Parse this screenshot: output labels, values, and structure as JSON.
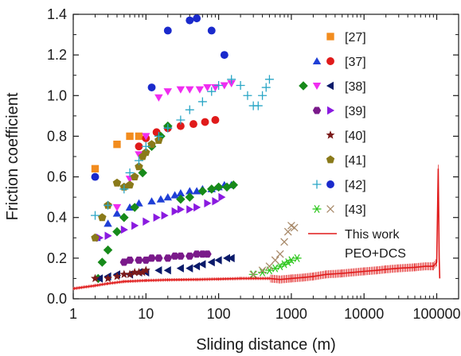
{
  "chart_data": {
    "type": "scatter",
    "xlabel": "Sliding distance (m)",
    "ylabel": "Friction coefficient",
    "x_scale": "log",
    "xlim": [
      1,
      200000
    ],
    "ylim": [
      0,
      1.4
    ],
    "x_ticks": [
      1,
      10,
      100,
      1000,
      10000,
      100000
    ],
    "x_tick_labels": [
      "1",
      "10",
      "100",
      "1000",
      "10000",
      "100000"
    ],
    "y_ticks": [
      0,
      0.2,
      0.4,
      0.6,
      0.8,
      1.0,
      1.2,
      1.4
    ],
    "y_tick_labels": [
      "0.0",
      "0.2",
      "0.4",
      "0.6",
      "0.8",
      "1.0",
      "1.2",
      "1.4"
    ],
    "grid": false,
    "legend_position": "right",
    "series": [
      {
        "name": "[27]",
        "marker": "square",
        "color": "#f28c1e",
        "x": [
          2,
          4,
          6,
          8
        ],
        "y": [
          0.64,
          0.76,
          0.8,
          0.8
        ]
      },
      {
        "name": "[37]",
        "marker": "triangle-up",
        "color": "#1f3fd6",
        "x": [
          2.1,
          3,
          4,
          6,
          8,
          12,
          16,
          20,
          25,
          30,
          40,
          50,
          60,
          80,
          100,
          120,
          150
        ],
        "y": [
          0.3,
          0.37,
          0.42,
          0.45,
          0.47,
          0.48,
          0.49,
          0.5,
          0.51,
          0.52,
          0.53,
          0.53,
          0.54,
          0.54,
          0.55,
          0.56,
          0.56
        ]
      },
      {
        "name": "[37]",
        "marker": "circle",
        "color": "#e01a1a",
        "x": [
          8,
          10,
          14,
          20,
          30,
          45,
          65,
          90
        ],
        "y": [
          0.75,
          0.79,
          0.82,
          0.84,
          0.85,
          0.86,
          0.87,
          0.88
        ]
      },
      {
        "name": "[38]",
        "marker": "diamond",
        "color": "#178a1a",
        "x": [
          2.2,
          2.5,
          3,
          4,
          5,
          7,
          9,
          12,
          16,
          20,
          30,
          40,
          60,
          80,
          100,
          130,
          160
        ],
        "y": [
          0.1,
          0.18,
          0.24,
          0.33,
          0.4,
          0.45,
          0.62,
          0.75,
          0.8,
          0.85,
          0.49,
          0.5,
          0.53,
          0.54,
          0.55,
          0.55,
          0.56
        ]
      },
      {
        "name": "[38]",
        "marker": "triangle-down",
        "color": "#f02cf0",
        "x": [
          4,
          6,
          8,
          10,
          15,
          20,
          30,
          40,
          55,
          70,
          90,
          120,
          150
        ],
        "y": [
          0.45,
          0.59,
          0.71,
          0.8,
          0.99,
          1.02,
          1.03,
          1.03,
          1.03,
          1.04,
          1.04,
          1.05,
          1.06
        ]
      },
      {
        "name": "[38]",
        "marker": "triangle-left",
        "color": "#0a1a6a",
        "x": [
          2.3,
          3,
          4,
          6,
          8,
          10,
          15,
          20,
          30,
          40,
          50,
          60,
          80,
          100,
          130,
          150
        ],
        "y": [
          0.1,
          0.11,
          0.12,
          0.12,
          0.13,
          0.13,
          0.14,
          0.14,
          0.15,
          0.15,
          0.16,
          0.17,
          0.18,
          0.19,
          0.2,
          0.2
        ]
      },
      {
        "name": "[39]",
        "marker": "hexagon",
        "color": "#7a1a8a",
        "x": [
          5,
          6,
          8,
          10,
          12,
          15,
          20,
          25,
          30,
          40,
          50,
          60,
          70
        ],
        "y": [
          0.18,
          0.19,
          0.19,
          0.19,
          0.2,
          0.2,
          0.2,
          0.21,
          0.21,
          0.21,
          0.22,
          0.22,
          0.22
        ]
      },
      {
        "name": "[39]",
        "marker": "triangle-right",
        "color": "#8a1ae0",
        "x": [
          2.3,
          3,
          5,
          7,
          10,
          14,
          18,
          25,
          30,
          40,
          50,
          70,
          90,
          110
        ],
        "y": [
          0.3,
          0.31,
          0.34,
          0.36,
          0.38,
          0.4,
          0.41,
          0.43,
          0.44,
          0.44,
          0.45,
          0.47,
          0.48,
          0.5
        ]
      },
      {
        "name": "[40]",
        "marker": "star",
        "color": "#7a1a1a",
        "x": [
          2,
          3,
          4,
          5,
          6,
          7,
          8,
          9,
          10
        ],
        "y": [
          0.1,
          0.1,
          0.11,
          0.12,
          0.12,
          0.13,
          0.13,
          0.13,
          0.14
        ]
      },
      {
        "name": "[41]",
        "marker": "pentagon",
        "color": "#8a7a1a",
        "x": [
          2,
          2.5,
          3,
          4,
          5,
          6,
          7,
          8,
          9,
          10,
          12,
          15
        ],
        "y": [
          0.3,
          0.4,
          0.46,
          0.57,
          0.55,
          0.56,
          0.6,
          0.65,
          0.7,
          0.72,
          0.76,
          0.78
        ]
      },
      {
        "name": "[42]",
        "marker": "plus",
        "color": "#2aa6c6",
        "x": [
          2,
          3,
          5,
          6,
          8,
          10,
          15,
          20,
          30,
          40,
          60,
          80,
          100,
          150,
          200,
          250,
          300,
          350,
          400,
          450,
          500
        ],
        "y": [
          0.41,
          0.46,
          0.54,
          0.62,
          0.68,
          0.75,
          0.8,
          0.84,
          0.88,
          0.93,
          0.97,
          1.02,
          1.05,
          1.08,
          1.05,
          1.0,
          0.95,
          0.95,
          1.0,
          1.04,
          1.08
        ]
      },
      {
        "name": "[42]",
        "marker": "circle",
        "color": "#1a2acc",
        "x": [
          2,
          12,
          20,
          40,
          50,
          80,
          120
        ],
        "y": [
          0.6,
          1.04,
          1.32,
          1.37,
          1.38,
          1.32,
          1.2
        ]
      },
      {
        "name": "[43]",
        "marker": "asterisk",
        "color": "#2ac61a",
        "x": [
          300,
          400,
          500,
          600,
          700,
          800,
          900,
          1000,
          1200
        ],
        "y": [
          0.12,
          0.13,
          0.14,
          0.15,
          0.16,
          0.17,
          0.18,
          0.19,
          0.2
        ]
      },
      {
        "name": "[43]",
        "marker": "cross",
        "color": "#a88a6a",
        "x": [
          300,
          400,
          500,
          600,
          700,
          800,
          900,
          1000,
          1100
        ],
        "y": [
          0.12,
          0.14,
          0.16,
          0.19,
          0.22,
          0.28,
          0.33,
          0.36,
          0.35
        ]
      },
      {
        "name": "This work",
        "name_line2": "PEO+DCS",
        "marker": "line",
        "color": "#e01a1a",
        "x": [
          1,
          2,
          3,
          5,
          10,
          20,
          50,
          100,
          200,
          500,
          700,
          1000,
          1500,
          2000,
          3000,
          5000,
          7000,
          10000,
          15000,
          20000,
          30000,
          50000,
          70000,
          90000,
          100000,
          105000,
          108000,
          110000
        ],
        "y": [
          0.05,
          0.065,
          0.075,
          0.085,
          0.09,
          0.093,
          0.095,
          0.097,
          0.1,
          0.1,
          0.095,
          0.1,
          0.105,
          0.11,
          0.12,
          0.125,
          0.13,
          0.135,
          0.14,
          0.145,
          0.15,
          0.155,
          0.16,
          0.16,
          0.18,
          0.64,
          0.2,
          0.1
        ]
      }
    ]
  }
}
